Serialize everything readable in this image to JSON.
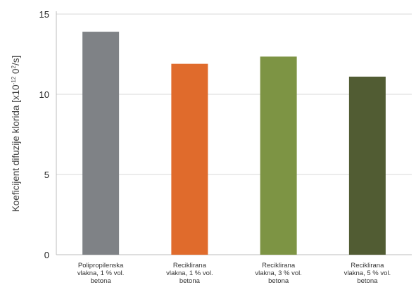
{
  "chart_data": {
    "type": "bar",
    "title": "",
    "xlabel": "",
    "ylabel_parts": {
      "main": "Koeficijent difuzije klorida [x10",
      "exp1": "-12",
      "mid": " 0",
      "exp2": "2",
      "end": "/s]"
    },
    "ylim": [
      0,
      15
    ],
    "yticks": [
      "0",
      "5",
      "10",
      "15"
    ],
    "grid": true,
    "categories": [
      [
        "Polipropilenska",
        "vlakna, 1 % vol.",
        "betona"
      ],
      [
        "Reciklirana",
        "vlakna, 1 % vol.",
        "betona"
      ],
      [
        "Reciklirana",
        "vlakna, 3 % vol.",
        "betona"
      ],
      [
        "Reciklirana",
        "vlakna, 5 % vol.",
        "betona"
      ]
    ],
    "values": [
      13.9,
      11.9,
      12.35,
      11.1
    ],
    "colors": [
      "#7f8286",
      "#e06b2c",
      "#7d9444",
      "#515c33"
    ]
  }
}
